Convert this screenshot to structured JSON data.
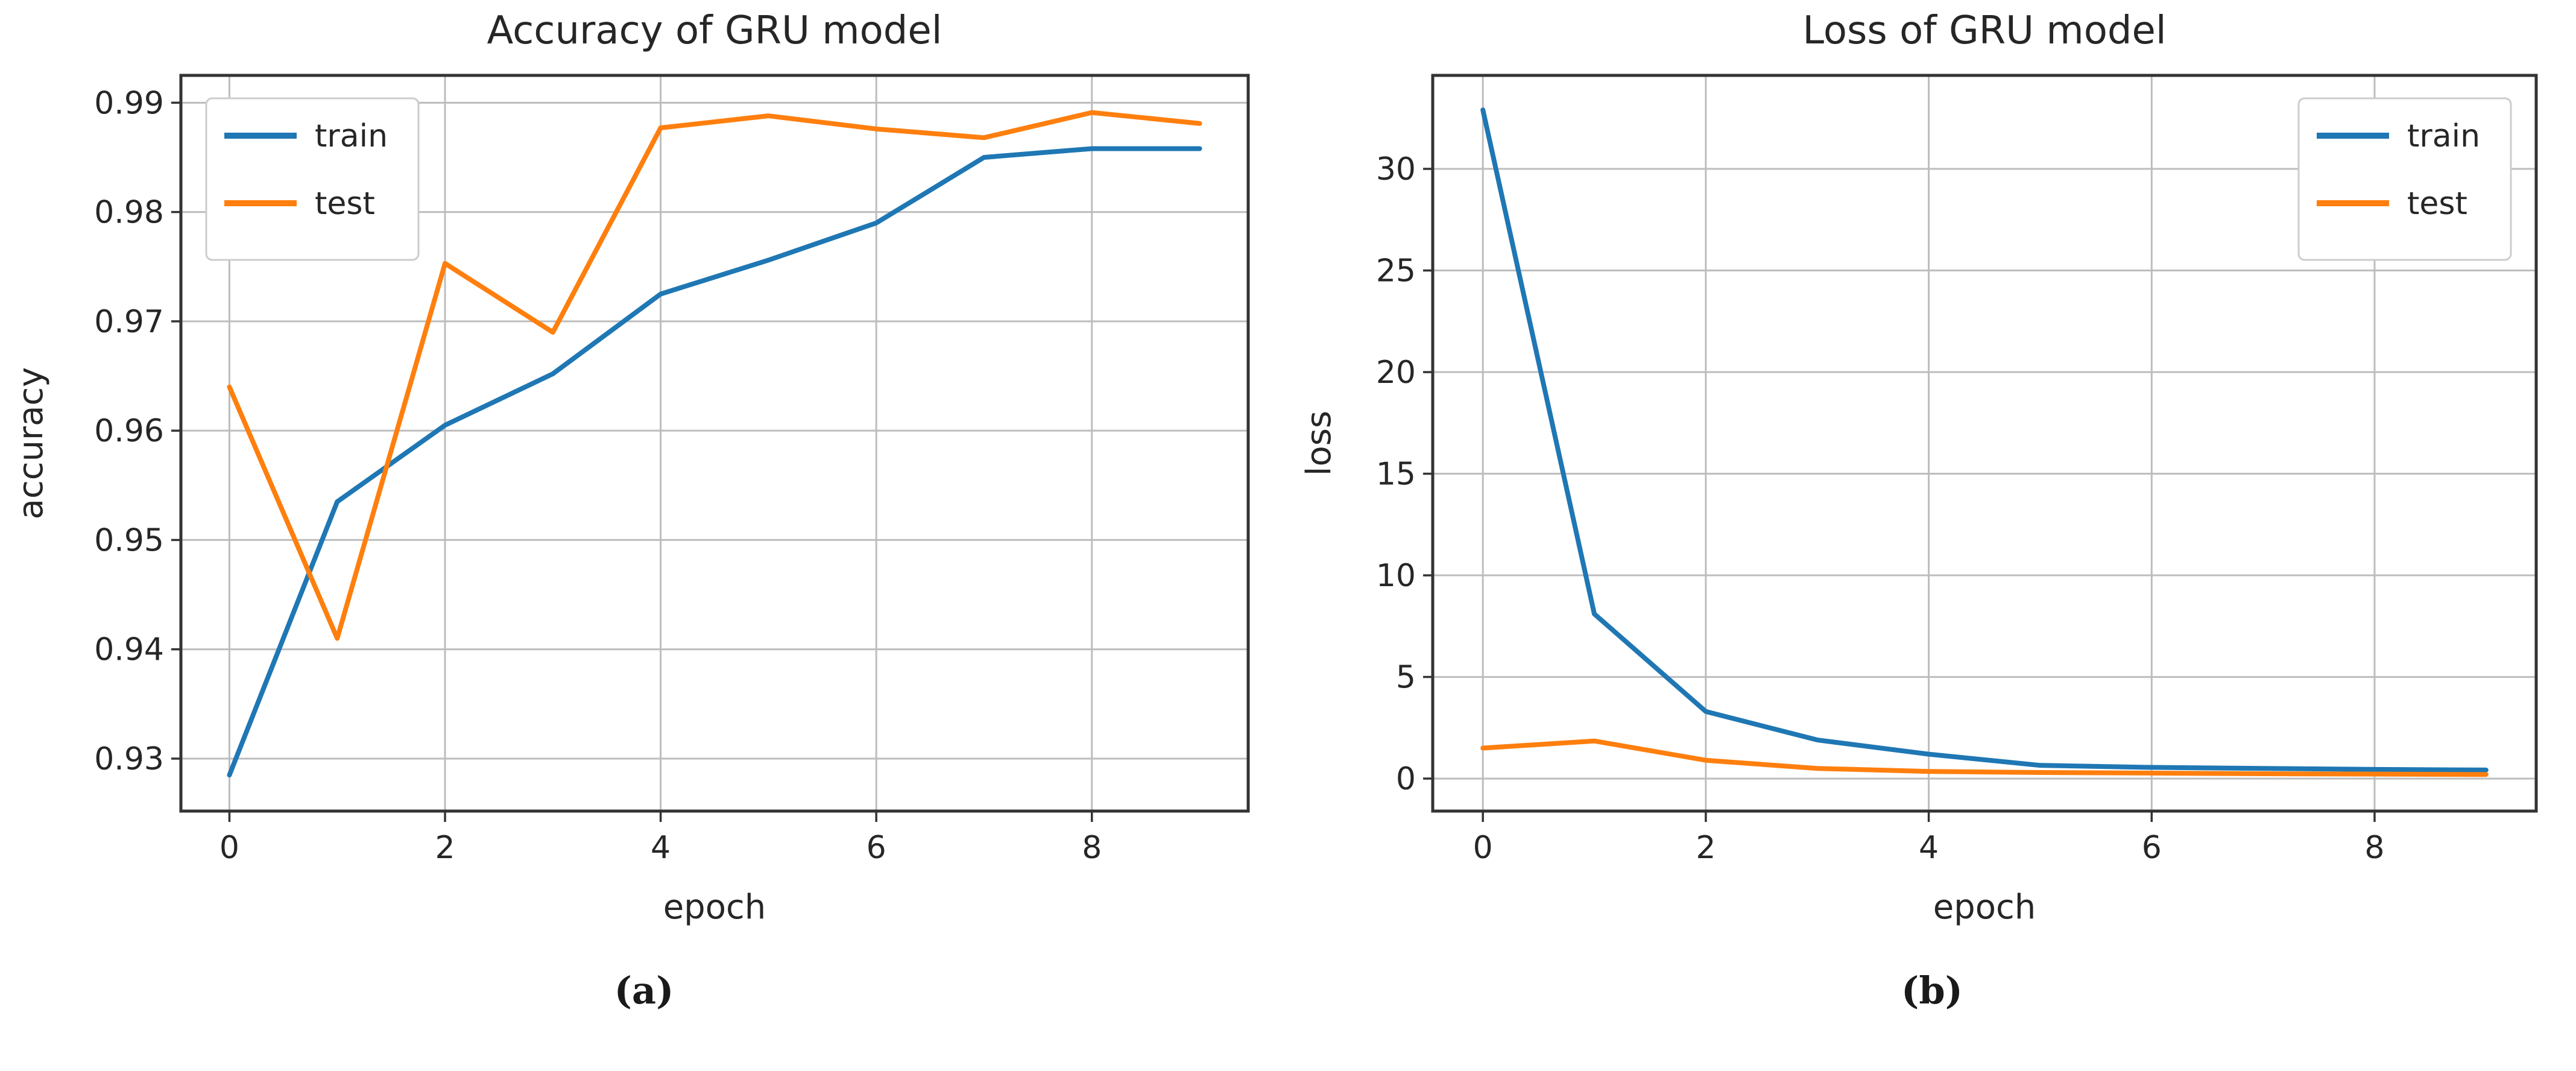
{
  "colors": {
    "train": "#1f77b4",
    "test": "#ff7f0e",
    "grid": "#bdbdbd",
    "spine": "#333333",
    "text": "#262626",
    "legend_border": "#cccccc",
    "legend_bg": "#ffffff"
  },
  "chart_data": [
    {
      "type": "line",
      "title": "Accuracy of GRU model",
      "xlabel": "epoch",
      "ylabel": "accuracy",
      "caption": "(a)",
      "legend_position": "upper-left",
      "legend_entries": [
        "train",
        "test"
      ],
      "grid": true,
      "x": [
        0,
        1,
        2,
        3,
        4,
        5,
        6,
        7,
        8,
        9
      ],
      "series": [
        {
          "name": "train",
          "color": "#1f77b4",
          "values": [
            0.9285,
            0.9535,
            0.9605,
            0.9652,
            0.9725,
            0.9756,
            0.979,
            0.985,
            0.9858,
            0.9858
          ]
        },
        {
          "name": "test",
          "color": "#ff7f0e",
          "values": [
            0.964,
            0.941,
            0.9753,
            0.969,
            0.9877,
            0.9888,
            0.9876,
            0.9868,
            0.9891,
            0.9881
          ]
        }
      ],
      "xlim": [
        -0.45,
        9.45
      ],
      "ylim": [
        0.9252,
        0.9925
      ],
      "xticks": [
        0,
        2,
        4,
        6,
        8
      ],
      "xtick_labels": [
        "0",
        "2",
        "4",
        "6",
        "8"
      ],
      "yticks": [
        0.93,
        0.94,
        0.95,
        0.96,
        0.97,
        0.98,
        0.99
      ],
      "ytick_labels": [
        "0.93",
        "0.94",
        "0.95",
        "0.96",
        "0.97",
        "0.98",
        "0.99"
      ]
    },
    {
      "type": "line",
      "title": "Loss of GRU model",
      "xlabel": "epoch",
      "ylabel": "loss",
      "caption": "(b)",
      "legend_position": "upper-right",
      "legend_entries": [
        "train",
        "test"
      ],
      "grid": true,
      "x": [
        0,
        1,
        2,
        3,
        4,
        5,
        6,
        7,
        8,
        9
      ],
      "series": [
        {
          "name": "train",
          "color": "#1f77b4",
          "values": [
            32.9,
            8.1,
            3.3,
            1.9,
            1.2,
            0.65,
            0.55,
            0.5,
            0.45,
            0.42
          ]
        },
        {
          "name": "test",
          "color": "#ff7f0e",
          "values": [
            1.5,
            1.85,
            0.9,
            0.5,
            0.35,
            0.3,
            0.27,
            0.24,
            0.22,
            0.2
          ]
        }
      ],
      "xlim": [
        -0.45,
        9.45
      ],
      "ylim": [
        -1.6,
        34.6
      ],
      "xticks": [
        0,
        2,
        4,
        6,
        8
      ],
      "xtick_labels": [
        "0",
        "2",
        "4",
        "6",
        "8"
      ],
      "yticks": [
        0,
        5,
        10,
        15,
        20,
        25,
        30
      ],
      "ytick_labels": [
        "0",
        "5",
        "10",
        "15",
        "20",
        "25",
        "30"
      ]
    }
  ]
}
